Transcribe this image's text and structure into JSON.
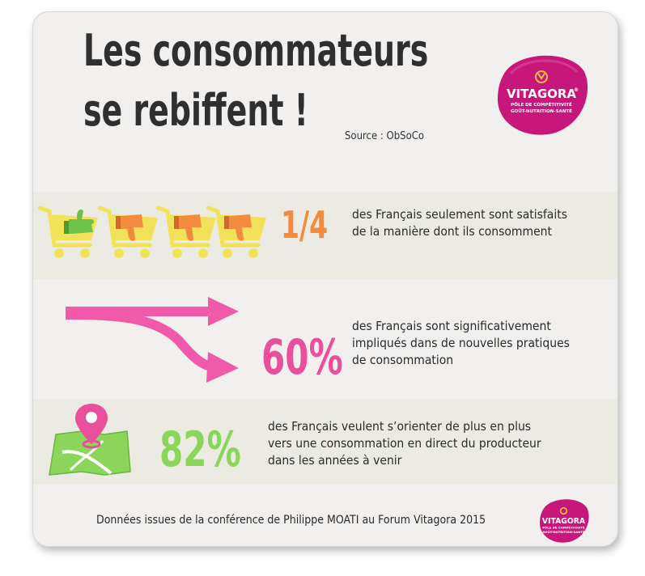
{
  "title": {
    "line1": "Les consommateurs",
    "line2": "se rebiffent !"
  },
  "source": "Source : ObSoCo",
  "logo": {
    "name": "VITAGORA",
    "registered": "®",
    "tagline1": "PÔLE DE COMPÉTITIVITÉ",
    "tagline2": "GOÛT-NUTRITION-SANTÉ"
  },
  "stats": [
    {
      "value": "1/4",
      "lines": [
        "des Français seulement sont satisfaits",
        "de la manière dont ils consomment"
      ],
      "color": "#f28b3d",
      "icon": "shopping-cart-icons"
    },
    {
      "value": "60%",
      "lines": [
        "des Français sont significativement",
        "impliqués dans de nouvelles pratiques",
        "de consommation"
      ],
      "color": "#e8509c",
      "icon": "crossing-arrows-icon"
    },
    {
      "value": "82%",
      "lines": [
        "des Français veulent s’orienter de plus en plus",
        "vers une consommation en direct du producteur",
        "dans les années à venir"
      ],
      "color": "#8bd65a",
      "icon": "map-pin-icon"
    }
  ],
  "footer": "Données issues de la conférence de Philippe MOATI au Forum Vitagora 2015",
  "colors": {
    "cart": "#f2e25a",
    "thumbs_up": "#6cc24a",
    "thumbs_down": "#f28b3d",
    "arrow": "#f05aa8",
    "pin": "#e8509c",
    "map": "#8bd65a",
    "logo": "#c8177a"
  }
}
